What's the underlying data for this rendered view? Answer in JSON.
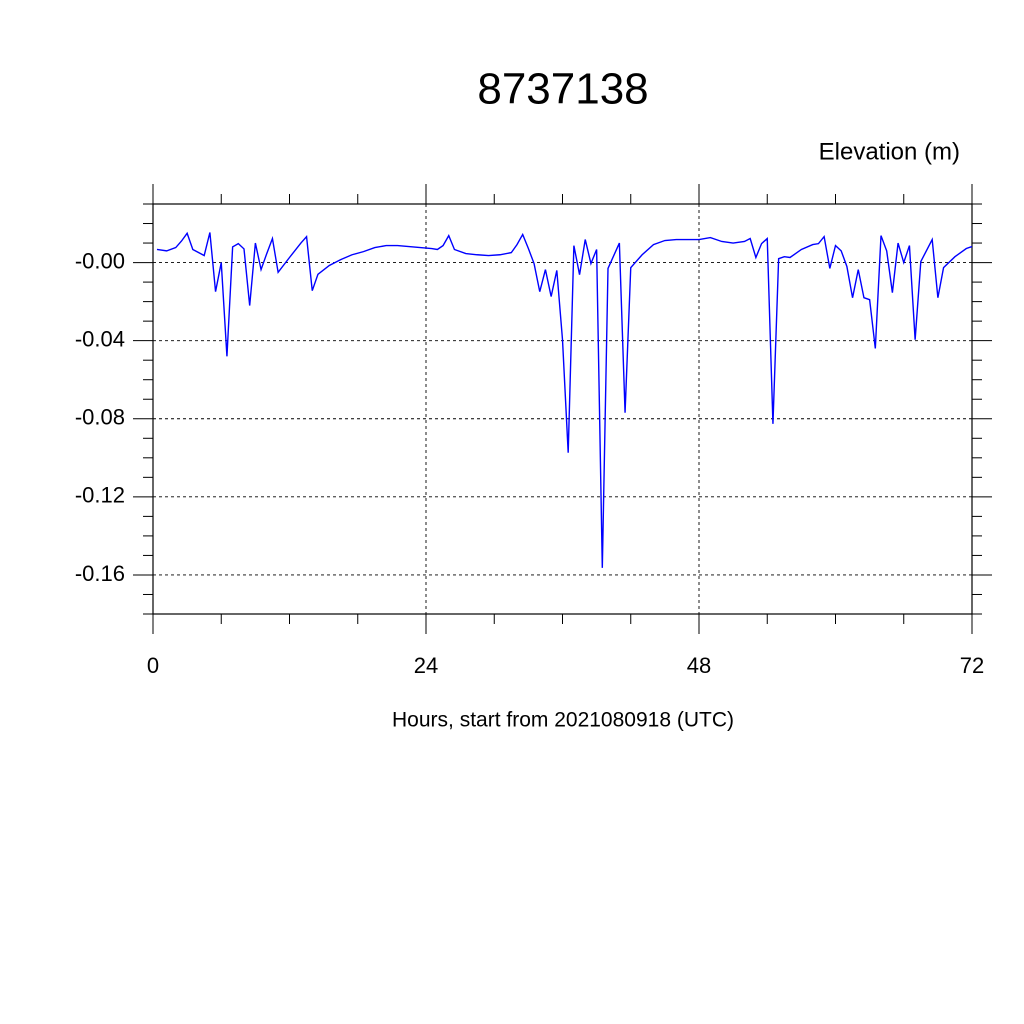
{
  "chart_data": {
    "type": "line",
    "title": "8737138",
    "ylabel": "Elevation (m)",
    "xlabel": "Hours, start from 2021080918 (UTC)",
    "xlim": [
      0,
      72
    ],
    "xticks": [
      0,
      24,
      48,
      72
    ],
    "ylim": [
      -0.18,
      0.03
    ],
    "yticks": [
      {
        "value": 0,
        "label": "-0.00"
      },
      -0.04,
      -0.08,
      -0.12,
      -0.16
    ],
    "grid": true,
    "series": [
      {
        "name": "Elevation",
        "color": "#0000ff",
        "x": [
          0.35,
          1.2,
          2.0,
          2.5,
          3.0,
          3.5,
          4.5,
          5.0,
          5.5,
          6.0,
          6.5,
          7.0,
          7.5,
          8.0,
          8.5,
          9.0,
          9.5,
          10.0,
          10.5,
          11.0,
          12.0,
          13.0,
          13.5,
          14.0,
          14.5,
          15.5,
          16.5,
          17.5,
          18.5,
          19.5,
          20.5,
          21.5,
          22.5,
          23.5,
          24.5,
          25.0,
          25.5,
          26.0,
          26.5,
          27.5,
          28.5,
          29.5,
          30.5,
          31.5,
          32.0,
          32.5,
          33.0,
          33.5,
          34.0,
          34.5,
          35.0,
          35.5,
          36.0,
          36.5,
          37.0,
          37.5,
          38.0,
          38.5,
          39.0,
          39.5,
          40.0,
          41.0,
          41.5,
          42.0,
          43.0,
          44.0,
          45.0,
          46.0,
          47.0,
          48.0,
          49.0,
          50.0,
          51.0,
          52.0,
          52.5,
          53.0,
          53.5,
          54.0,
          54.5,
          55.0,
          55.5,
          56.0,
          57.0,
          58.0,
          58.5,
          59.0,
          59.5,
          60.0,
          60.5,
          61.0,
          61.5,
          62.0,
          62.5,
          63.0,
          63.5,
          64.0,
          64.5,
          65.0,
          65.5,
          66.0,
          66.5,
          67.0,
          67.5,
          68.5,
          69.0,
          69.5,
          70.5,
          71.5,
          72.0
        ],
        "values": [
          0.0067,
          0.006,
          0.0077,
          0.011,
          0.015,
          0.0067,
          0.0036,
          0.0154,
          -0.0149,
          0.0,
          -0.048,
          0.008,
          0.0097,
          0.007,
          -0.022,
          0.01,
          -0.0036,
          0.0046,
          0.0123,
          -0.005,
          0.0026,
          0.01,
          0.0133,
          -0.0144,
          -0.006,
          -0.0015,
          0.0015,
          0.004,
          0.0056,
          0.0077,
          0.0087,
          0.0087,
          0.0082,
          0.0077,
          0.0072,
          0.0067,
          0.0087,
          0.0138,
          0.0067,
          0.0046,
          0.004,
          0.0036,
          0.004,
          0.0051,
          0.0092,
          0.0144,
          0.0072,
          -0.0005,
          -0.0149,
          -0.0036,
          -0.0174,
          -0.004,
          -0.0395,
          -0.0974,
          0.0087,
          -0.0062,
          0.0118,
          -0.0005,
          0.0067,
          -0.1564,
          -0.003,
          0.01,
          -0.0769,
          -0.0026,
          0.004,
          0.0092,
          0.0113,
          0.0118,
          0.0118,
          0.0118,
          0.0128,
          0.0108,
          0.01,
          0.0108,
          0.0123,
          0.0026,
          0.0097,
          0.0123,
          -0.0826,
          0.002,
          0.003,
          0.0026,
          0.0067,
          0.0092,
          0.0097,
          0.0133,
          -0.003,
          0.0087,
          0.006,
          -0.002,
          -0.018,
          -0.0036,
          -0.018,
          -0.019,
          -0.044,
          0.0138,
          0.006,
          -0.0154,
          0.01,
          0.0,
          0.0087,
          -0.0395,
          0.0005,
          0.0118,
          -0.018,
          -0.0026,
          0.003,
          0.0072,
          0.0082
        ]
      }
    ]
  }
}
